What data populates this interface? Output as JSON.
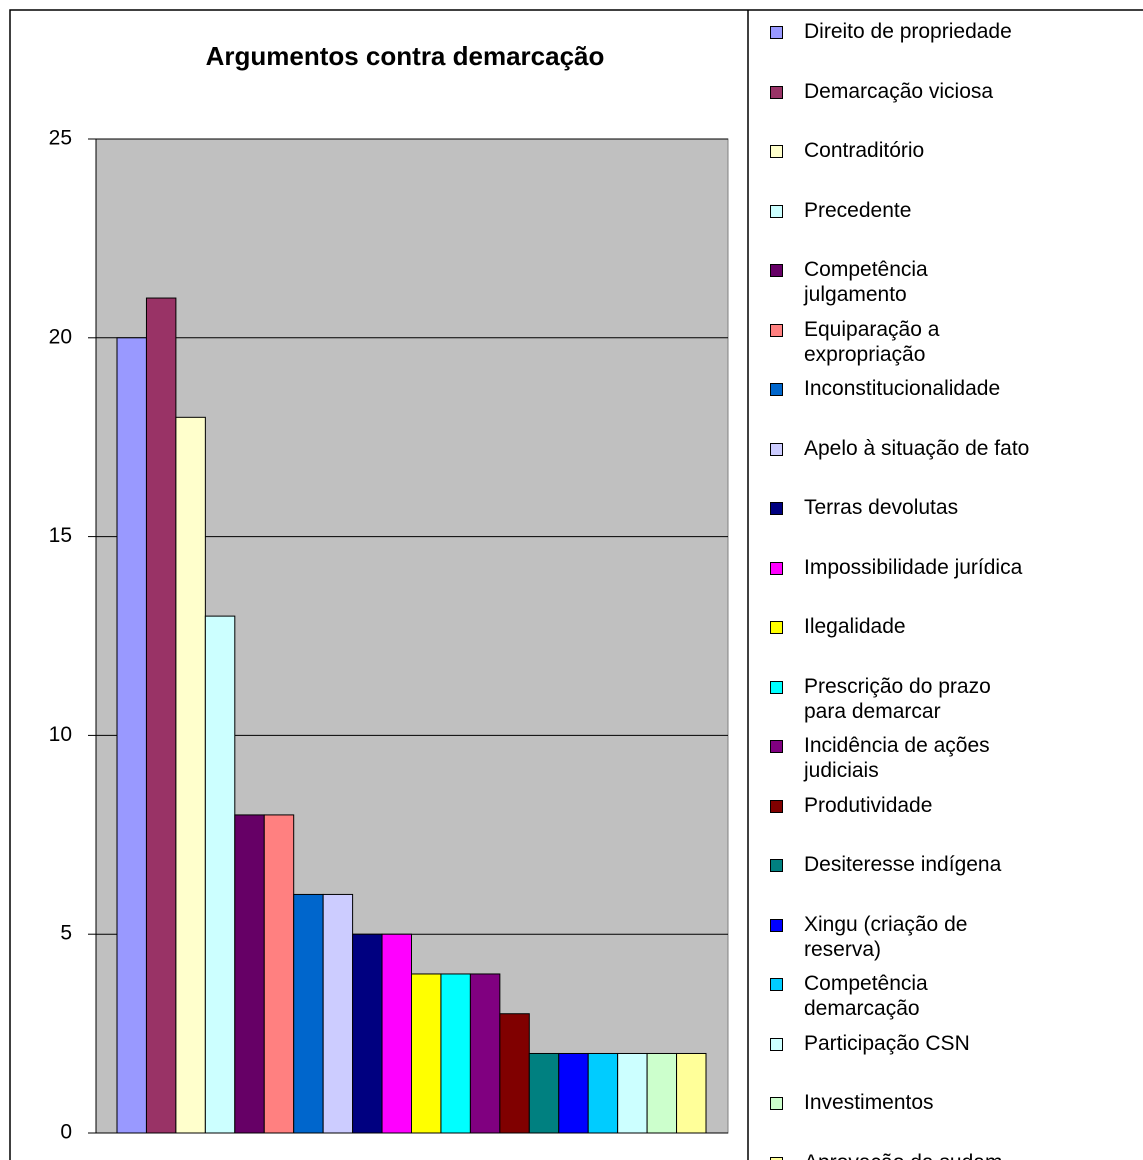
{
  "chart_data": {
    "type": "bar",
    "title": "Argumentos contra demarcação",
    "categories": [
      "Direito de propriedade",
      "Demarcação viciosa",
      "Contraditório",
      "Precedente",
      "Competência\njulgamento",
      "Equiparação a\nexpropriação",
      "Inconstitucionalidade",
      "Apelo à situação de fato",
      "Terras devolutas",
      "Impossibilidade jurídica",
      "Ilegalidade",
      "Prescrição do prazo\npara demarcar",
      "Incidência de ações\njudiciais",
      "Produtividade",
      "Desiteresse indígena",
      "Xingu (criação de\nreserva)",
      "Competência\ndemarcação",
      "Participação CSN",
      "Investimentos",
      "Aprovação da sudam"
    ],
    "values": [
      20,
      21,
      18,
      13,
      8,
      8,
      6,
      6,
      5,
      5,
      4,
      4,
      4,
      3,
      2,
      2,
      2,
      2,
      2,
      2
    ],
    "colors": [
      "#9999ff",
      "#993366",
      "#ffffcc",
      "#ccffff",
      "#660066",
      "#ff8080",
      "#0066cc",
      "#ccccff",
      "#000080",
      "#ff00ff",
      "#ffff00",
      "#00ffff",
      "#800080",
      "#800000",
      "#008080",
      "#0000ff",
      "#00ccff",
      "#ccffff",
      "#ccffcc",
      "#ffff99"
    ],
    "ylim": [
      0,
      25
    ],
    "yticks": [
      0,
      5,
      10,
      15,
      20,
      25
    ],
    "grid": true,
    "plot_background": "#c0c0c0",
    "legend": "right"
  }
}
